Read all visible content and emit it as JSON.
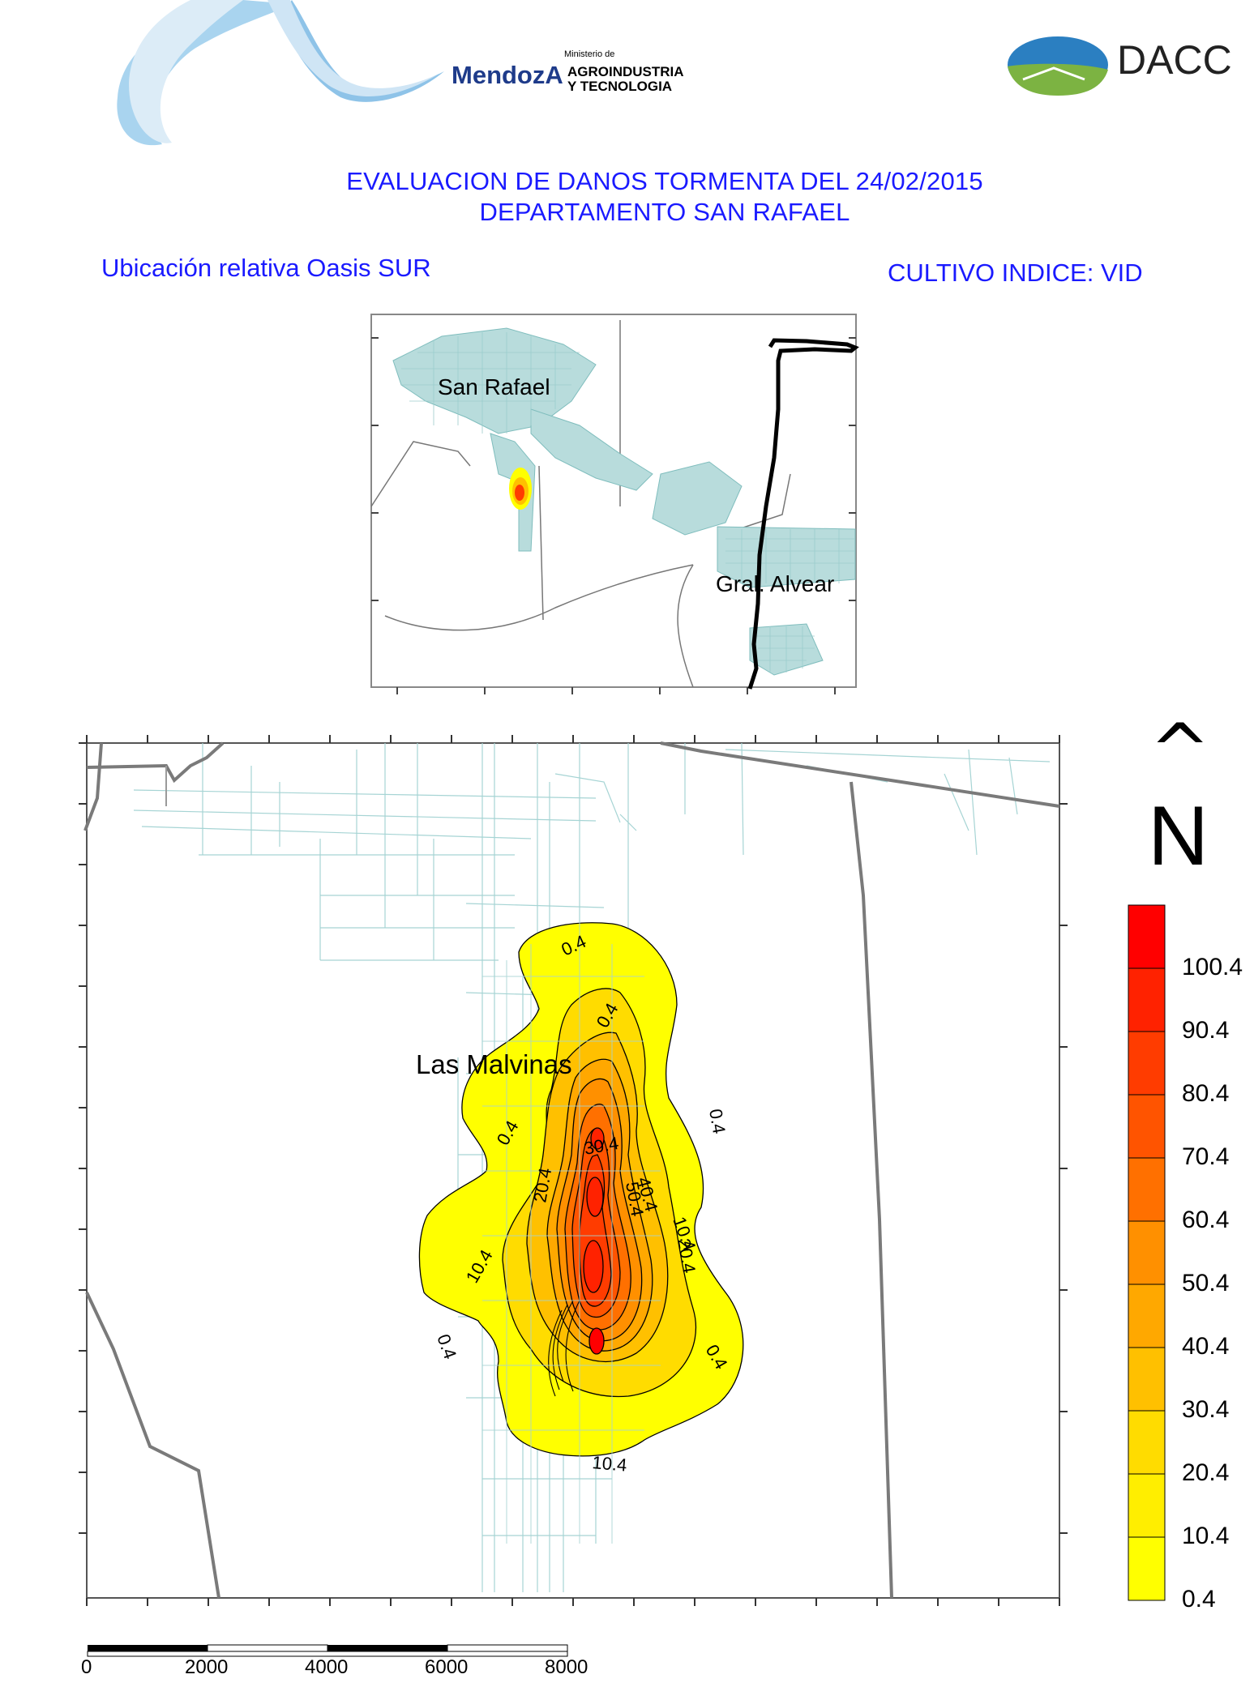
{
  "header": {
    "mendoza_logo": {
      "brand": "MendozA",
      "ministry_small": "Ministerio de",
      "ministry_line1": "AGROINDUSTRIA",
      "ministry_line2": "Y TECNOLOGIA"
    },
    "dacc_logo": {
      "text": "DACC"
    }
  },
  "title": {
    "line1": "EVALUACION DE DANOS TORMENTA DEL 24/02/2015",
    "line2": "DEPARTAMENTO SAN RAFAEL"
  },
  "subtitle_left": "Ubicación relativa Oasis SUR",
  "subtitle_right": "CULTIVO INDICE: VID",
  "inset_map": {
    "labels": {
      "city1": "San Rafael",
      "city2": "Gral. Alvear"
    }
  },
  "main_map": {
    "place_label": "Las Malvinas",
    "contour_labels": [
      "0.4",
      "0.4",
      "0.4",
      "0.4",
      "0.4",
      "0.4",
      "10.4",
      "10.4",
      "10.4",
      "20.4",
      "20.4",
      "30.4",
      "40.4",
      "50.4"
    ]
  },
  "north_arrow": {
    "caret": "^",
    "letter": "N"
  },
  "legend": {
    "levels": [
      "100.4",
      "90.4",
      "80.4",
      "70.4",
      "60.4",
      "50.4",
      "40.4",
      "30.4",
      "20.4",
      "10.4",
      "0.4"
    ],
    "colors": [
      "#ff0000",
      "#ff2200",
      "#ff3c00",
      "#ff5400",
      "#ff7000",
      "#ff9000",
      "#ffa800",
      "#ffc000",
      "#ffdc00",
      "#ffee00",
      "#ffff00"
    ]
  },
  "scale_bar": {
    "ticks": [
      "0",
      "2000",
      "4000",
      "6000",
      "8000"
    ]
  }
}
